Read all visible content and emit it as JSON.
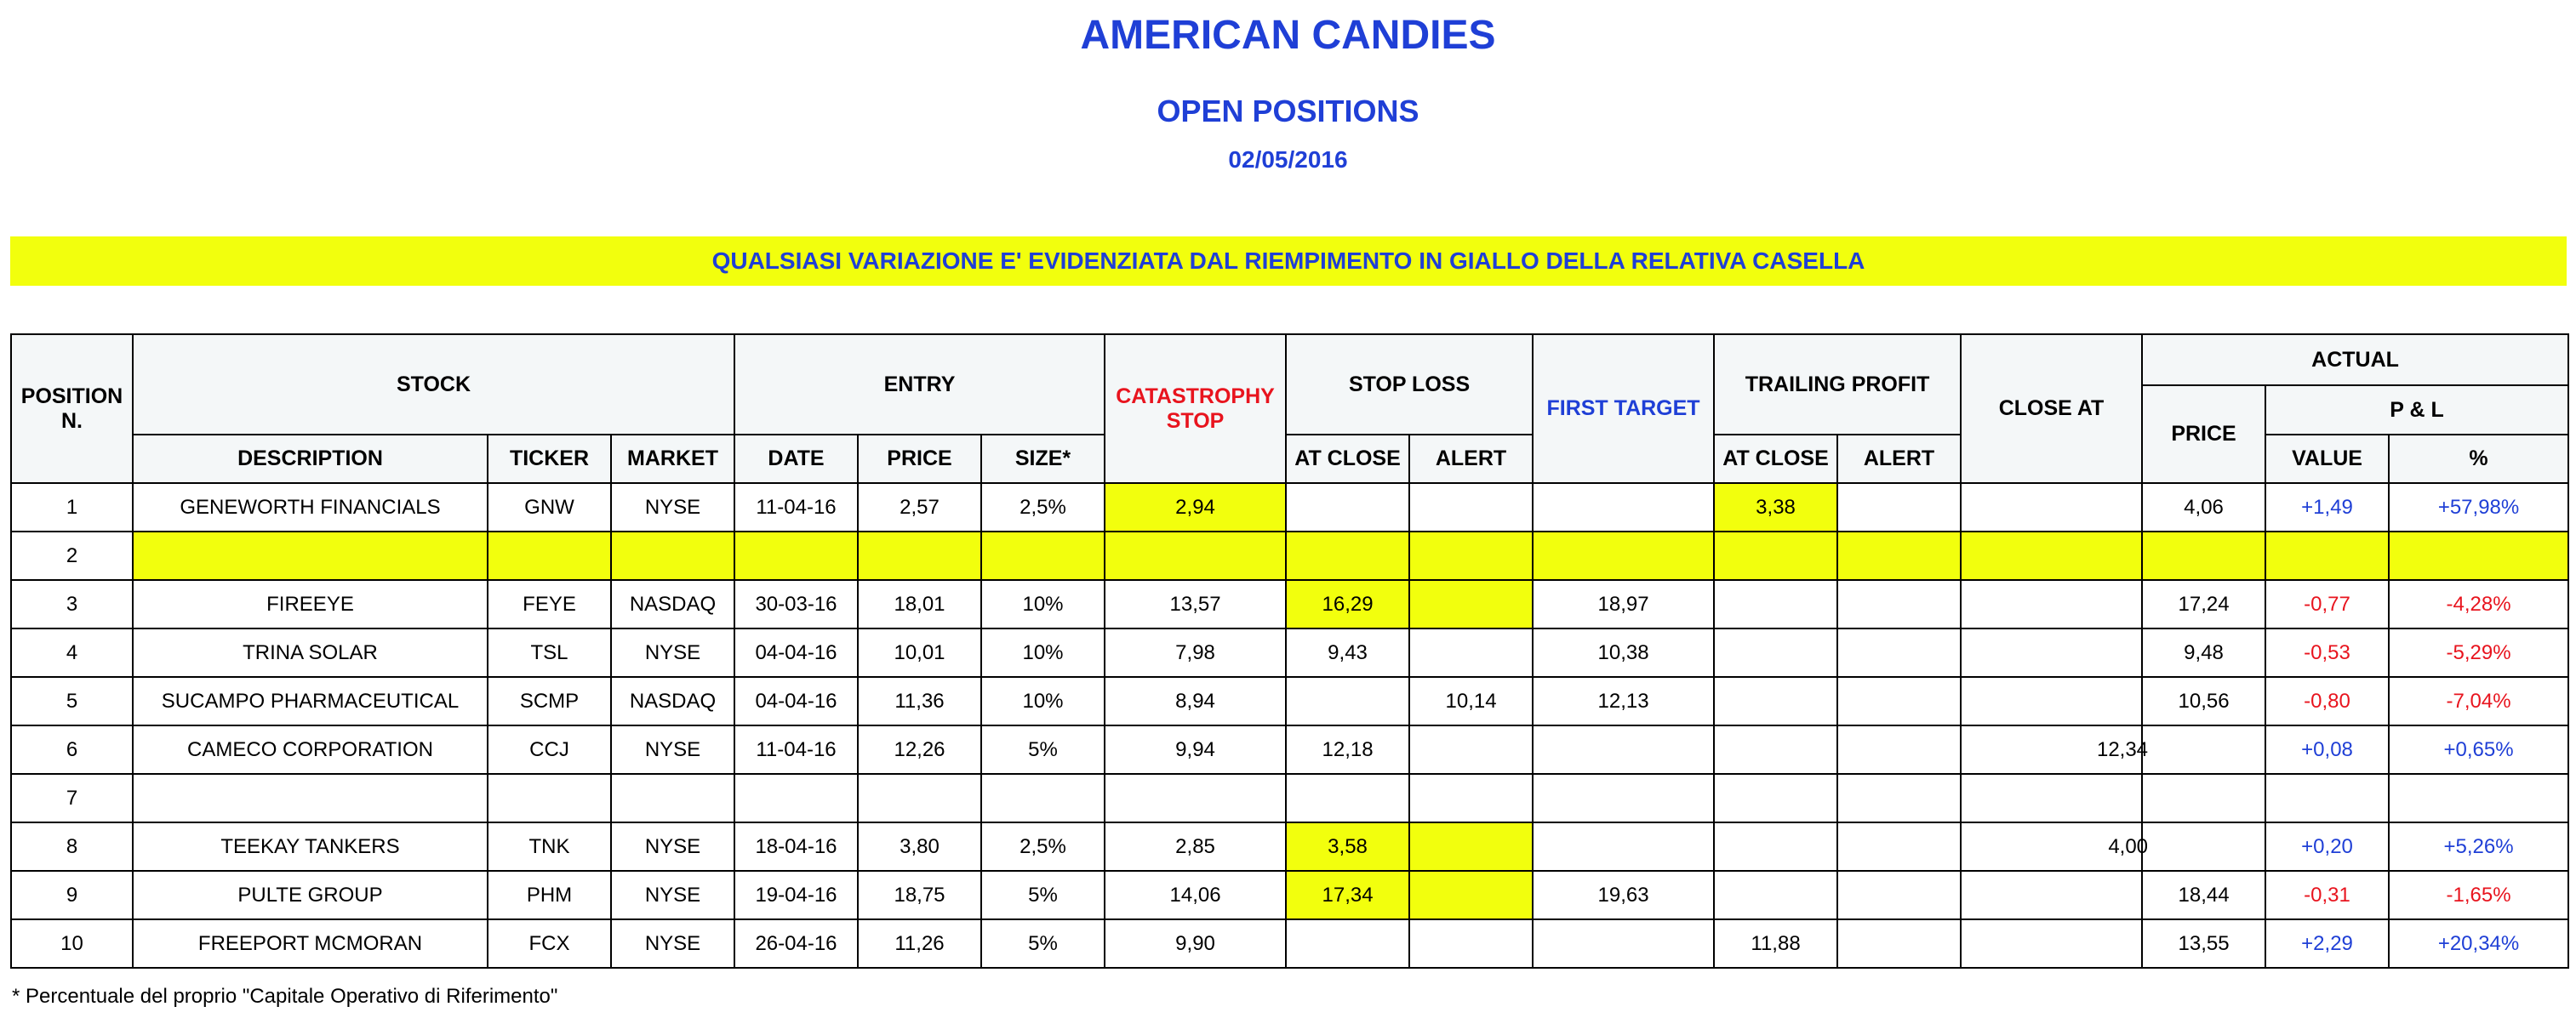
{
  "title": "AMERICAN CANDIES",
  "subtitle": "OPEN POSITIONS",
  "date": "02/05/2016",
  "banner": "QUALSIASI VARIAZIONE E' EVIDENZIATA DAL RIEMPIMENTO IN GIALLO DELLA RELATIVA CASELLA",
  "headers": {
    "position": "POSITION N.",
    "stock": "STOCK",
    "description": "DESCRIPTION",
    "ticker": "TICKER",
    "market": "MARKET",
    "entry": "ENTRY",
    "date": "DATE",
    "price": "PRICE",
    "size": "SIZE*",
    "catastrophy": "CATASTROPHY STOP",
    "stop_loss": "STOP LOSS",
    "at_close": "AT CLOSE",
    "alert": "ALERT",
    "first_target": "FIRST TARGET",
    "trailing_profit": "TRAILING PROFIT",
    "tp_at_close": "AT CLOSE",
    "tp_alert": "ALERT",
    "close_at": "CLOSE AT",
    "actual": "ACTUAL",
    "actual_price": "PRICE",
    "pl": "P & L",
    "value": "VALUE",
    "percent": "%"
  },
  "highlight_color": "#f2ff0d",
  "title_color": "#1f3fd6",
  "positive_color": "#1f3fd6",
  "negative_color": "#e8141e",
  "rows": [
    {
      "n": "1",
      "desc": "GENEWORTH FINANCIALS",
      "ticker": "GNW",
      "market": "NYSE",
      "date": "11-04-16",
      "price": "2,57",
      "size": "2,5%",
      "cat": "2,94",
      "sl_close": "",
      "sl_alert": "",
      "target": "",
      "tp_close": "3,38",
      "tp_alert": "",
      "close_at": "",
      "act_price": "4,06",
      "value": "+1,49",
      "pct": "+57,98%"
    },
    {
      "n": "2",
      "desc": "",
      "ticker": "",
      "market": "",
      "date": "",
      "price": "",
      "size": "",
      "cat": "",
      "sl_close": "",
      "sl_alert": "",
      "target": "",
      "tp_close": "",
      "tp_alert": "",
      "close_at": "",
      "act_price": "",
      "value": "",
      "pct": ""
    },
    {
      "n": "3",
      "desc": "FIREEYE",
      "ticker": "FEYE",
      "market": "NASDAQ",
      "date": "30-03-16",
      "price": "18,01",
      "size": "10%",
      "cat": "13,57",
      "sl_close": "16,29",
      "sl_alert": "",
      "target": "18,97",
      "tp_close": "",
      "tp_alert": "",
      "close_at": "",
      "act_price": "17,24",
      "value": "-0,77",
      "pct": "-4,28%"
    },
    {
      "n": "4",
      "desc": "TRINA SOLAR",
      "ticker": "TSL",
      "market": "NYSE",
      "date": "04-04-16",
      "price": "10,01",
      "size": "10%",
      "cat": "7,98",
      "sl_close": "9,43",
      "sl_alert": "",
      "target": "10,38",
      "tp_close": "",
      "tp_alert": "",
      "close_at": "",
      "act_price": "9,48",
      "value": "-0,53",
      "pct": "-5,29%"
    },
    {
      "n": "5",
      "desc": "SUCAMPO PHARMACEUTICAL",
      "ticker": "SCMP",
      "market": "NASDAQ",
      "date": "04-04-16",
      "price": "11,36",
      "size": "10%",
      "cat": "8,94",
      "sl_close": "",
      "sl_alert": "10,14",
      "target": "12,13",
      "tp_close": "",
      "tp_alert": "",
      "close_at": "",
      "act_price": "10,56",
      "value": "-0,80",
      "pct": "-7,04%"
    },
    {
      "n": "6",
      "desc": "CAMECO CORPORATION",
      "ticker": "CCJ",
      "market": "NYSE",
      "date": "11-04-16",
      "price": "12,26",
      "size": "5%",
      "cat": "9,94",
      "sl_close": "12,18",
      "sl_alert": "",
      "target": "",
      "tp_close": "",
      "tp_alert": "",
      "close_at": "12,34",
      "act_price": "",
      "value": "+0,08",
      "pct": "+0,65%"
    },
    {
      "n": "7",
      "desc": "",
      "ticker": "",
      "market": "",
      "date": "",
      "price": "",
      "size": "",
      "cat": "",
      "sl_close": "",
      "sl_alert": "",
      "target": "",
      "tp_close": "",
      "tp_alert": "",
      "close_at": "",
      "act_price": "",
      "value": "",
      "pct": ""
    },
    {
      "n": "8",
      "desc": "TEEKAY TANKERS",
      "ticker": "TNK",
      "market": "NYSE",
      "date": "18-04-16",
      "price": "3,80",
      "size": "2,5%",
      "cat": "2,85",
      "sl_close": "3,58",
      "sl_alert": "",
      "target": "",
      "tp_close": "",
      "tp_alert": "",
      "close_at": "4,00",
      "act_price": "",
      "value": "+0,20",
      "pct": "+5,26%"
    },
    {
      "n": "9",
      "desc": "PULTE GROUP",
      "ticker": "PHM",
      "market": "NYSE",
      "date": "19-04-16",
      "price": "18,75",
      "size": "5%",
      "cat": "14,06",
      "sl_close": "17,34",
      "sl_alert": "",
      "target": "19,63",
      "tp_close": "",
      "tp_alert": "",
      "close_at": "",
      "act_price": "18,44",
      "value": "-0,31",
      "pct": "-1,65%"
    },
    {
      "n": "10",
      "desc": "FREEPORT MCMORAN",
      "ticker": "FCX",
      "market": "NYSE",
      "date": "26-04-16",
      "price": "11,26",
      "size": "5%",
      "cat": "9,90",
      "sl_close": "",
      "sl_alert": "",
      "target": "",
      "tp_close": "11,88",
      "tp_alert": "",
      "close_at": "",
      "act_price": "13,55",
      "value": "+2,29",
      "pct": "+20,34%"
    }
  ],
  "footnote": "* Percentuale del proprio \"Capitale Operativo di Riferimento\""
}
